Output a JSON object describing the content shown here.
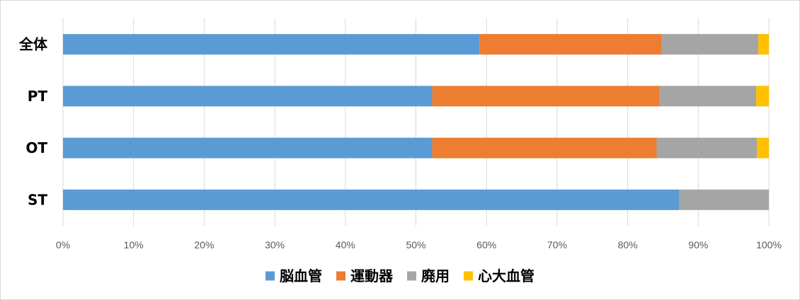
{
  "chart_data": {
    "type": "bar",
    "orientation": "horizontal",
    "stacked": "percent",
    "categories": [
      "全体",
      "PT",
      "OT",
      "ST"
    ],
    "series": [
      {
        "name": "脳血管",
        "color": "#5B9BD5",
        "values": [
          59.0,
          52.3,
          52.3,
          87.3
        ]
      },
      {
        "name": "運動器",
        "color": "#ED7D31",
        "values": [
          25.8,
          32.2,
          31.8,
          0.0
        ]
      },
      {
        "name": "廃用",
        "color": "#A5A5A5",
        "values": [
          13.7,
          13.7,
          14.2,
          12.7
        ]
      },
      {
        "name": "心大血管",
        "color": "#FFC000",
        "values": [
          1.5,
          1.8,
          1.7,
          0.0
        ]
      }
    ],
    "xlim": [
      0,
      100
    ],
    "xticks": [
      "0%",
      "10%",
      "20%",
      "30%",
      "40%",
      "50%",
      "60%",
      "70%",
      "80%",
      "90%",
      "100%"
    ],
    "grid": true,
    "legend_position": "bottom"
  }
}
